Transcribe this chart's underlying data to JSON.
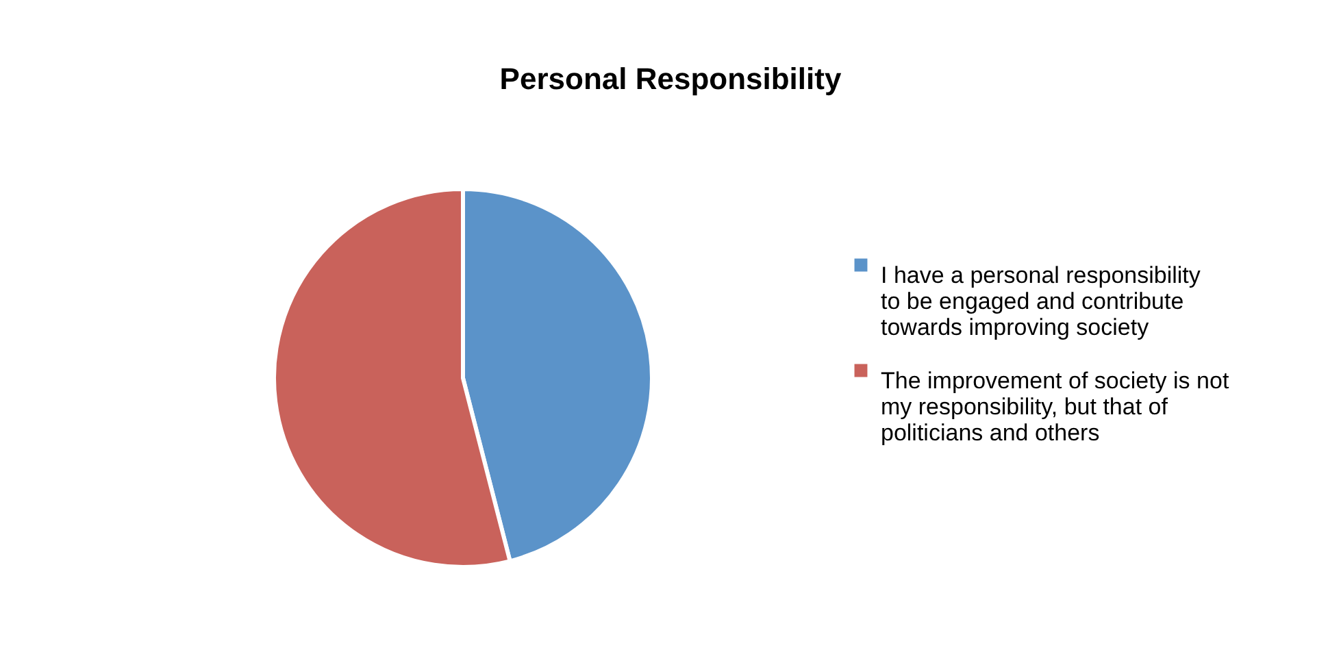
{
  "chart_data": {
    "type": "pie",
    "title": "Personal Responsibility",
    "categories": [
      "I have a personal responsibility to be engaged and contribute towards improving society",
      "The improvement of society is not my responsibility, but that of politicians and others"
    ],
    "values": [
      46,
      54
    ],
    "colors": [
      "#5b93c9",
      "#c9625b"
    ],
    "legend": "right"
  }
}
